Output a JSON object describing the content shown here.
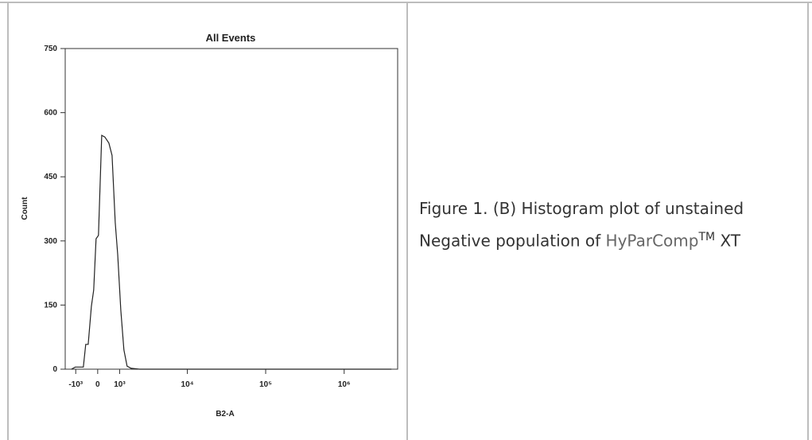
{
  "chart_data": {
    "type": "line",
    "title": "All Events",
    "x_label": "B2-A",
    "y_label": "Count",
    "xscale": "biexponential",
    "x": [
      -1230,
      -1020,
      -630,
      -520,
      -410,
      -270,
      -170,
      -68,
      34,
      170,
      306,
      485,
      630,
      780,
      900,
      1060,
      1230,
      1410,
      1660,
      2260,
      4000000
    ],
    "series": [
      {
        "color": "#222222",
        "values": [
          0,
          5,
          5,
          58,
          58,
          147,
          185,
          305,
          313,
          547,
          543,
          529,
          500,
          343,
          268,
          138,
          45,
          7,
          2,
          0,
          0
        ]
      }
    ],
    "xlim": [
      -1600,
      4800000
    ],
    "xticks": [
      {
        "value": -1000,
        "label": "-10³"
      },
      0,
      {
        "value": 1000,
        "label": "10³"
      },
      {
        "value": 10000,
        "label": "10⁴"
      },
      {
        "value": 100000,
        "label": "10⁵"
      },
      {
        "value": 1000000,
        "label": "10⁶"
      }
    ],
    "ylim": [
      0,
      750
    ],
    "yticks": [
      0,
      150,
      300,
      450,
      600,
      750
    ]
  },
  "caption": {
    "text": "Figure 1. (B) Histogram plot of unstained Negative population of",
    "brand": "HyParComp",
    "superscript": "TM",
    "suffix": "XT"
  }
}
